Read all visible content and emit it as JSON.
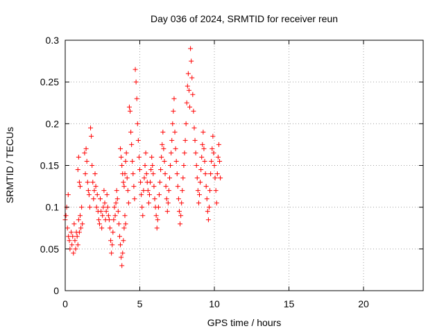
{
  "chart_data": {
    "type": "scatter",
    "title": "Day 036 of 2024, SRMTID for receiver reun",
    "xlabel": "GPS time / hours",
    "ylabel": "SRMTID / TECUs",
    "xlim": [
      0,
      24
    ],
    "ylim": [
      0,
      0.3
    ],
    "xticks": [
      0,
      5,
      10,
      15,
      20
    ],
    "xtick_labels": [
      "0",
      "5",
      "10",
      "15",
      "20"
    ],
    "yticks": [
      0,
      0.05,
      0.1,
      0.15,
      0.2,
      0.25,
      0.3
    ],
    "ytick_labels": [
      "0",
      "0.05",
      "0.1",
      "0.15",
      "0.2",
      "0.25",
      "0.3"
    ],
    "grid": true,
    "marker": "plus",
    "color": "#ff0000",
    "series": [
      {
        "name": "SRMTID",
        "points": [
          [
            0.0,
            0.085
          ],
          [
            0.05,
            0.09
          ],
          [
            0.1,
            0.1
          ],
          [
            0.15,
            0.075
          ],
          [
            0.2,
            0.115
          ],
          [
            0.22,
            0.065
          ],
          [
            0.28,
            0.06
          ],
          [
            0.32,
            0.05
          ],
          [
            0.4,
            0.07
          ],
          [
            0.45,
            0.055
          ],
          [
            0.5,
            0.065
          ],
          [
            0.55,
            0.045
          ],
          [
            0.6,
            0.08
          ],
          [
            0.65,
            0.06
          ],
          [
            0.7,
            0.05
          ],
          [
            0.75,
            0.07
          ],
          [
            0.8,
            0.065
          ],
          [
            0.85,
            0.055
          ],
          [
            0.9,
            0.085
          ],
          [
            0.95,
            0.07
          ],
          [
            1.0,
            0.09
          ],
          [
            1.05,
            0.075
          ],
          [
            1.1,
            0.1
          ],
          [
            1.15,
            0.08
          ],
          [
            0.85,
            0.145
          ],
          [
            0.9,
            0.16
          ],
          [
            0.95,
            0.13
          ],
          [
            1.0,
            0.125
          ],
          [
            1.3,
            0.165
          ],
          [
            1.35,
            0.14
          ],
          [
            1.4,
            0.17
          ],
          [
            1.45,
            0.155
          ],
          [
            1.5,
            0.13
          ],
          [
            1.55,
            0.12
          ],
          [
            1.6,
            0.115
          ],
          [
            1.65,
            0.1
          ],
          [
            1.7,
            0.195
          ],
          [
            1.75,
            0.185
          ],
          [
            1.8,
            0.15
          ],
          [
            1.85,
            0.13
          ],
          [
            1.9,
            0.11
          ],
          [
            1.95,
            0.12
          ],
          [
            2.0,
            0.14
          ],
          [
            2.05,
            0.125
          ],
          [
            2.1,
            0.1
          ],
          [
            2.15,
            0.115
          ],
          [
            2.2,
            0.095
          ],
          [
            2.25,
            0.085
          ],
          [
            2.3,
            0.08
          ],
          [
            2.35,
            0.11
          ],
          [
            2.4,
            0.095
          ],
          [
            2.45,
            0.075
          ],
          [
            2.5,
            0.09
          ],
          [
            2.55,
            0.1
          ],
          [
            2.6,
            0.12
          ],
          [
            2.65,
            0.105
          ],
          [
            2.7,
            0.085
          ],
          [
            2.75,
            0.095
          ],
          [
            2.8,
            0.115
          ],
          [
            2.85,
            0.1
          ],
          [
            2.9,
            0.09
          ],
          [
            2.95,
            0.085
          ],
          [
            3.0,
            0.075
          ],
          [
            3.05,
            0.06
          ],
          [
            3.1,
            0.045
          ],
          [
            3.15,
            0.055
          ],
          [
            3.2,
            0.07
          ],
          [
            3.25,
            0.085
          ],
          [
            3.3,
            0.1
          ],
          [
            3.35,
            0.09
          ],
          [
            3.4,
            0.105
          ],
          [
            3.45,
            0.12
          ],
          [
            3.5,
            0.11
          ],
          [
            3.55,
            0.095
          ],
          [
            3.6,
            0.08
          ],
          [
            3.65,
            0.065
          ],
          [
            3.7,
            0.055
          ],
          [
            3.75,
            0.04
          ],
          [
            3.8,
            0.03
          ],
          [
            3.85,
            0.045
          ],
          [
            3.9,
            0.06
          ],
          [
            3.95,
            0.075
          ],
          [
            4.0,
            0.09
          ],
          [
            4.05,
            0.08
          ],
          [
            3.7,
            0.17
          ],
          [
            3.75,
            0.16
          ],
          [
            3.8,
            0.15
          ],
          [
            3.85,
            0.14
          ],
          [
            3.9,
            0.13
          ],
          [
            3.95,
            0.125
          ],
          [
            4.0,
            0.14
          ],
          [
            4.05,
            0.155
          ],
          [
            4.1,
            0.165
          ],
          [
            4.15,
            0.135
          ],
          [
            4.2,
            0.12
          ],
          [
            4.25,
            0.105
          ],
          [
            4.3,
            0.22
          ],
          [
            4.35,
            0.215
          ],
          [
            4.4,
            0.19
          ],
          [
            4.45,
            0.175
          ],
          [
            4.5,
            0.155
          ],
          [
            4.55,
            0.14
          ],
          [
            4.6,
            0.125
          ],
          [
            4.65,
            0.11
          ],
          [
            4.7,
            0.265
          ],
          [
            4.75,
            0.25
          ],
          [
            4.8,
            0.23
          ],
          [
            4.85,
            0.2
          ],
          [
            4.9,
            0.18
          ],
          [
            4.95,
            0.16
          ],
          [
            5.0,
            0.145
          ],
          [
            5.05,
            0.13
          ],
          [
            5.1,
            0.115
          ],
          [
            5.15,
            0.1
          ],
          [
            5.2,
            0.09
          ],
          [
            5.25,
            0.12
          ],
          [
            5.3,
            0.135
          ],
          [
            5.35,
            0.15
          ],
          [
            5.4,
            0.165
          ],
          [
            5.45,
            0.14
          ],
          [
            5.5,
            0.13
          ],
          [
            5.55,
            0.12
          ],
          [
            5.6,
            0.105
          ],
          [
            5.65,
            0.115
          ],
          [
            5.7,
            0.13
          ],
          [
            5.75,
            0.145
          ],
          [
            5.8,
            0.16
          ],
          [
            5.85,
            0.15
          ],
          [
            5.9,
            0.14
          ],
          [
            5.95,
            0.125
          ],
          [
            6.0,
            0.11
          ],
          [
            6.05,
            0.1
          ],
          [
            6.1,
            0.09
          ],
          [
            6.15,
            0.075
          ],
          [
            6.2,
            0.085
          ],
          [
            6.25,
            0.1
          ],
          [
            6.3,
            0.115
          ],
          [
            6.35,
            0.13
          ],
          [
            6.4,
            0.145
          ],
          [
            6.45,
            0.16
          ],
          [
            6.5,
            0.175
          ],
          [
            6.55,
            0.19
          ],
          [
            6.6,
            0.17
          ],
          [
            6.65,
            0.155
          ],
          [
            6.7,
            0.14
          ],
          [
            6.75,
            0.125
          ],
          [
            6.8,
            0.11
          ],
          [
            6.85,
            0.095
          ],
          [
            6.9,
            0.105
          ],
          [
            6.95,
            0.12
          ],
          [
            7.0,
            0.135
          ],
          [
            7.05,
            0.15
          ],
          [
            7.1,
            0.165
          ],
          [
            7.15,
            0.18
          ],
          [
            7.2,
            0.2
          ],
          [
            7.25,
            0.215
          ],
          [
            7.3,
            0.23
          ],
          [
            7.35,
            0.19
          ],
          [
            7.4,
            0.17
          ],
          [
            7.45,
            0.155
          ],
          [
            7.5,
            0.14
          ],
          [
            7.55,
            0.125
          ],
          [
            7.6,
            0.11
          ],
          [
            7.65,
            0.095
          ],
          [
            7.7,
            0.08
          ],
          [
            7.75,
            0.09
          ],
          [
            7.8,
            0.105
          ],
          [
            7.85,
            0.12
          ],
          [
            7.9,
            0.135
          ],
          [
            7.95,
            0.15
          ],
          [
            8.0,
            0.165
          ],
          [
            8.05,
            0.18
          ],
          [
            8.1,
            0.2
          ],
          [
            8.15,
            0.225
          ],
          [
            8.2,
            0.245
          ],
          [
            8.25,
            0.26
          ],
          [
            8.3,
            0.24
          ],
          [
            8.35,
            0.22
          ],
          [
            8.4,
            0.29
          ],
          [
            8.45,
            0.275
          ],
          [
            8.5,
            0.255
          ],
          [
            8.55,
            0.235
          ],
          [
            8.6,
            0.215
          ],
          [
            8.65,
            0.195
          ],
          [
            8.7,
            0.18
          ],
          [
            8.75,
            0.165
          ],
          [
            8.8,
            0.15
          ],
          [
            8.85,
            0.135
          ],
          [
            8.9,
            0.12
          ],
          [
            8.95,
            0.105
          ],
          [
            9.0,
            0.115
          ],
          [
            9.05,
            0.13
          ],
          [
            9.1,
            0.145
          ],
          [
            9.15,
            0.16
          ],
          [
            9.2,
            0.175
          ],
          [
            9.25,
            0.19
          ],
          [
            9.3,
            0.17
          ],
          [
            9.35,
            0.155
          ],
          [
            9.4,
            0.14
          ],
          [
            9.45,
            0.125
          ],
          [
            9.5,
            0.11
          ],
          [
            9.55,
            0.095
          ],
          [
            9.6,
            0.085
          ],
          [
            9.65,
            0.1
          ],
          [
            9.7,
            0.12
          ],
          [
            9.75,
            0.14
          ],
          [
            9.8,
            0.155
          ],
          [
            9.85,
            0.17
          ],
          [
            9.9,
            0.185
          ],
          [
            9.95,
            0.165
          ],
          [
            10.0,
            0.15
          ],
          [
            10.05,
            0.135
          ],
          [
            10.1,
            0.12
          ],
          [
            10.15,
            0.105
          ],
          [
            10.2,
            0.14
          ],
          [
            10.25,
            0.16
          ],
          [
            10.3,
            0.175
          ],
          [
            10.35,
            0.155
          ],
          [
            10.4,
            0.135
          ]
        ]
      }
    ]
  }
}
